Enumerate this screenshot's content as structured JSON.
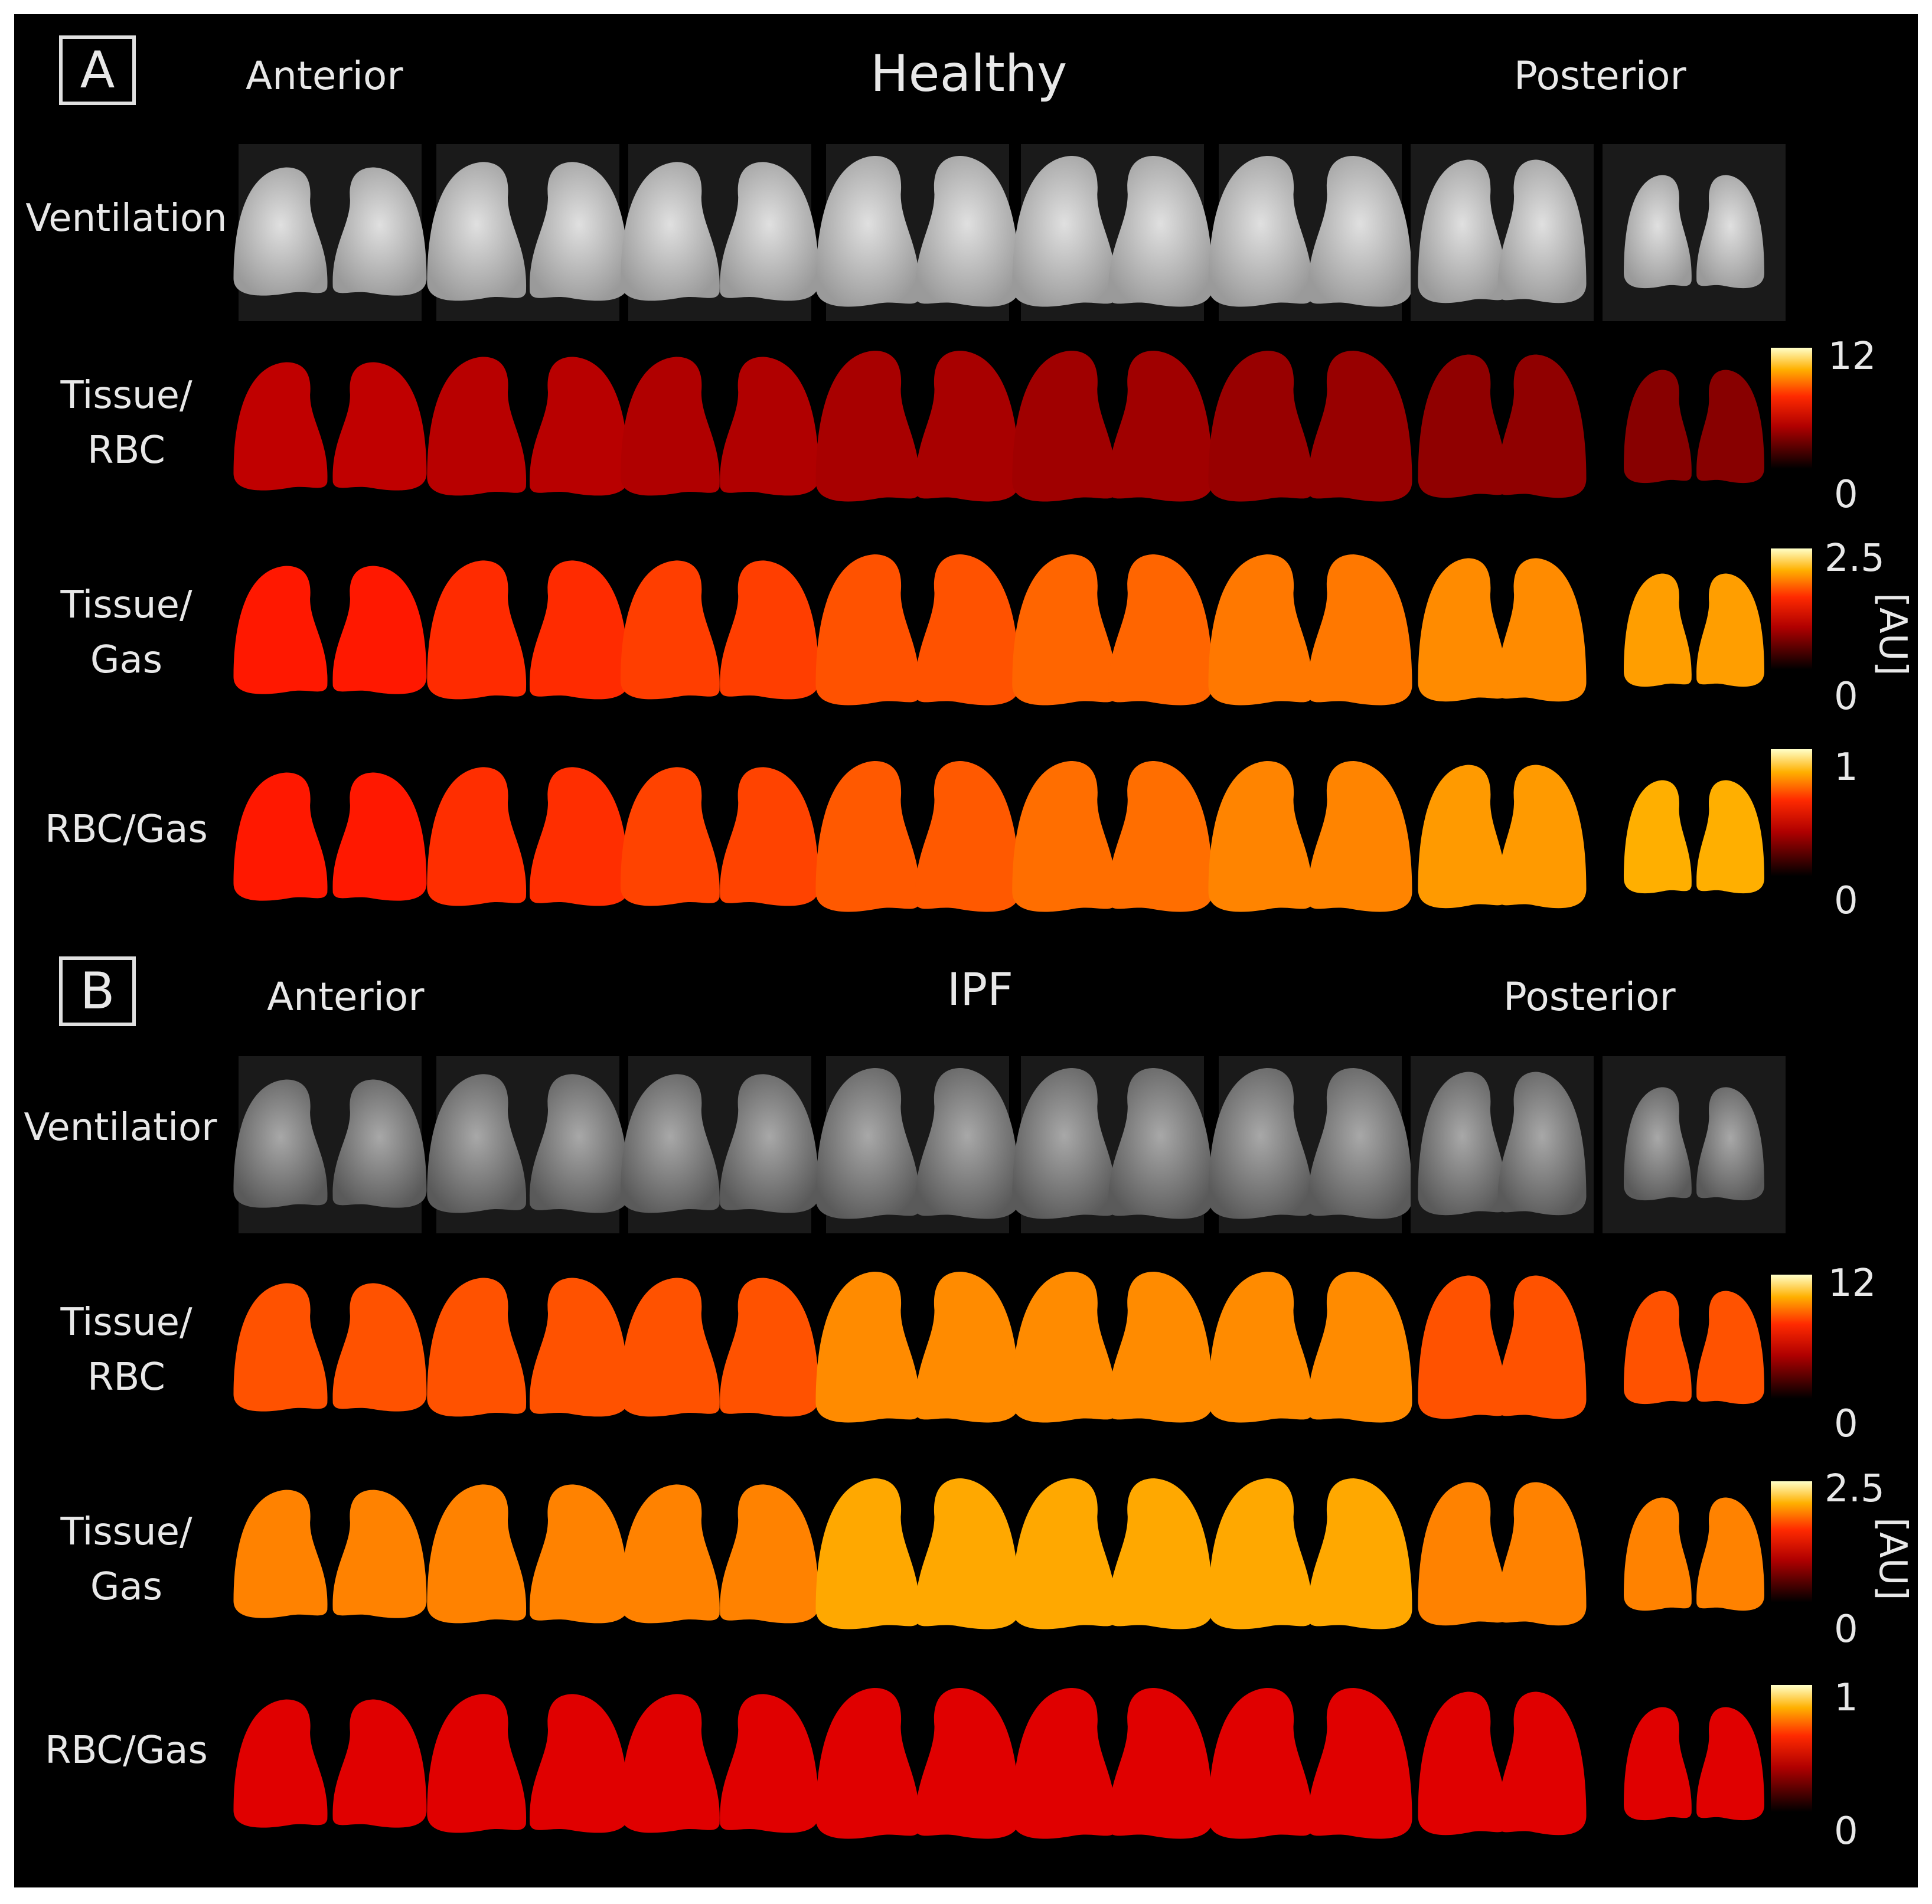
{
  "panels": [
    {
      "letter": "A",
      "title": "Healthy",
      "anterior": "Anterior",
      "posterior": "Posterior",
      "rows": [
        {
          "label": "Ventilation",
          "map": "gray"
        },
        {
          "label": "Tissue/\nRBC",
          "map": "hot",
          "cbar_max": "12",
          "cbar_min": "0"
        },
        {
          "label": "Tissue/\nGas",
          "map": "hot",
          "cbar_max": "2.5",
          "cbar_min": "0",
          "unit": "[AU]"
        },
        {
          "label": "RBC/Gas",
          "map": "hot",
          "cbar_max": "1",
          "cbar_min": "0"
        }
      ]
    },
    {
      "letter": "B",
      "title": "IPF",
      "anterior": "Anterior",
      "posterior": "Posterior",
      "rows": [
        {
          "label": "Ventilatior",
          "map": "gray"
        },
        {
          "label": "Tissue/\nRBC",
          "map": "hot",
          "cbar_max": "12",
          "cbar_min": "0"
        },
        {
          "label": "Tissue/\nGas",
          "map": "hot",
          "cbar_max": "2.5",
          "cbar_min": "0",
          "unit": "[AU]"
        },
        {
          "label": "RBC/Gas",
          "map": "hot",
          "cbar_max": "1",
          "cbar_min": "0"
        }
      ]
    }
  ],
  "colors": {
    "background": "#000000",
    "text": "#e8e8e8",
    "hot_low": "#3a0000",
    "hot_mid": "#e02000",
    "hot_high": "#ffff80",
    "ventilation": "#c8c8c8"
  }
}
